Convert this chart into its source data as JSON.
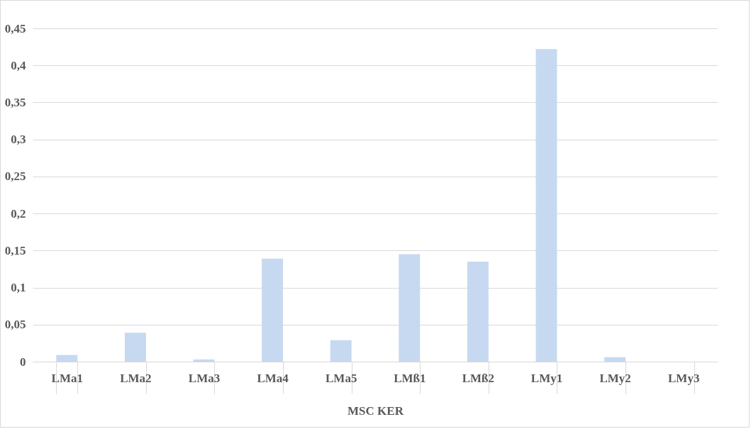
{
  "chart_data": {
    "type": "bar",
    "xlabel": "MSC KER",
    "categories": [
      "LMa1",
      "LMa2",
      "LMa3",
      "LMa4",
      "LMa5",
      "LMß1",
      "LMß2",
      "LMy1",
      "LMy2",
      "LMy3"
    ],
    "values": [
      0.009,
      0.039,
      0.003,
      0.139,
      0.029,
      0.145,
      0.135,
      0.422,
      0.006,
      0
    ],
    "color": "#c6d9f0",
    "ylim": [
      0,
      0.45
    ],
    "yticks": [
      {
        "value": 0,
        "label": "0"
      },
      {
        "value": 0.05,
        "label": "0,05"
      },
      {
        "value": 0.1,
        "label": "0,1"
      },
      {
        "value": 0.15,
        "label": "0,15"
      },
      {
        "value": 0.2,
        "label": "0,2"
      },
      {
        "value": 0.25,
        "label": "0,25"
      },
      {
        "value": 0.3,
        "label": "0,3"
      },
      {
        "value": 0.35,
        "label": "0,35"
      },
      {
        "value": 0.4,
        "label": "0,4"
      },
      {
        "value": 0.45,
        "label": "0,45"
      }
    ],
    "grid": "y"
  }
}
